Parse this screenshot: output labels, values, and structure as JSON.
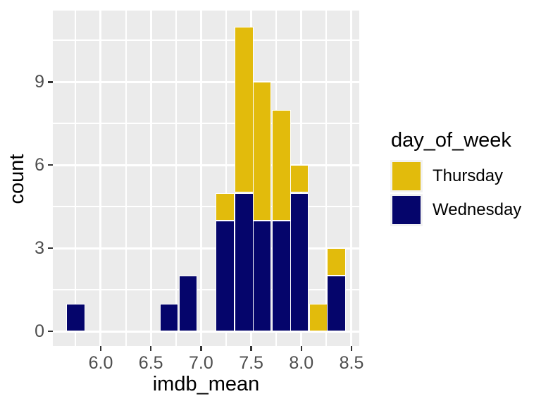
{
  "figure": {
    "x_axis_title": "imdb_mean",
    "y_axis_title": "count"
  },
  "legend": {
    "title": "day_of_week",
    "entries": [
      {
        "label": "Thursday",
        "color": "#E2BB0C"
      },
      {
        "label": "Wednesday",
        "color": "#05056B"
      }
    ]
  },
  "colors": {
    "panel_background": "#EBEBEB",
    "gridline": "#FFFFFF",
    "bar_border": "#FFFFFF",
    "axis_text": "#4D4D4D",
    "title_text": "#000000",
    "tick_mark": "#333333",
    "legend_key_background": "#F2F2F2",
    "thursday": "#E2BB0C",
    "wednesday": "#05056B"
  },
  "chart_data": {
    "type": "bar",
    "subtype": "stacked_histogram",
    "title": "",
    "xlabel": "imdb_mean",
    "ylabel": "count",
    "legend_title": "day_of_week",
    "legend_position": "right",
    "grid": true,
    "panel_background": "ggplot-grey",
    "xlim": [
      5.52,
      8.58
    ],
    "ylim": [
      -0.55,
      11.55
    ],
    "x_ticks": [
      6.0,
      6.5,
      7.0,
      7.5,
      8.0,
      8.5
    ],
    "x_tick_labels": [
      "6.0",
      "6.5",
      "7.0",
      "7.5",
      "8.0",
      "8.5"
    ],
    "y_ticks": [
      0,
      3,
      6,
      9
    ],
    "y_tick_labels": [
      "0",
      "3",
      "6",
      "9"
    ],
    "x_minor_ticks": [
      5.75,
      6.25,
      6.75,
      7.25,
      7.75,
      8.25
    ],
    "y_minor_ticks": [
      1.5,
      4.5,
      7.5,
      10.5
    ],
    "binwidth": 0.1857,
    "bin_centers": [
      5.75,
      6.68,
      6.87,
      7.24,
      7.43,
      7.61,
      7.8,
      7.98,
      8.17,
      8.35
    ],
    "stack_order_bottom_to_top": [
      "Wednesday",
      "Thursday"
    ],
    "series": [
      {
        "name": "Wednesday",
        "color": "#05056B",
        "values": [
          1,
          1,
          2,
          4,
          5,
          4,
          4,
          5,
          0,
          2
        ]
      },
      {
        "name": "Thursday",
        "color": "#E2BB0C",
        "values": [
          0,
          0,
          0,
          1,
          6,
          5,
          4,
          1,
          1,
          1
        ]
      }
    ],
    "bin_totals": [
      1,
      1,
      2,
      5,
      11,
      9,
      8,
      6,
      1,
      3
    ]
  }
}
